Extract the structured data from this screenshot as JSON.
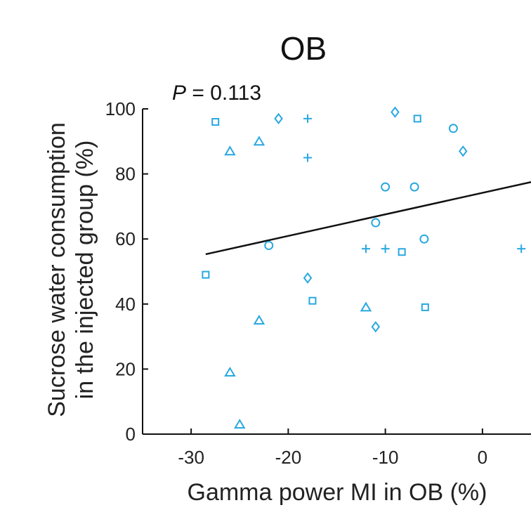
{
  "chart_data": {
    "type": "scatter",
    "title": "OB",
    "xlabel": "Gamma power MI in OB (%)",
    "ylabel_line1": "Sucrose water consumption",
    "ylabel_line2": "in the injected group (%)",
    "annotation_p": "P",
    "annotation_value": " = 0.113",
    "xlim": [
      -35,
      5
    ],
    "ylim": [
      0,
      100
    ],
    "xticks": [
      -30,
      -20,
      -10,
      0
    ],
    "xtick_labels": [
      "-30",
      "-20",
      "-10",
      "0"
    ],
    "yticks": [
      0,
      20,
      40,
      60,
      80,
      100
    ],
    "ytick_labels": [
      "0",
      "20",
      "40",
      "60",
      "80",
      "100"
    ],
    "marker_color": "#29a8e0",
    "line_color": "#111111",
    "fit_line": {
      "x": [
        -28.5,
        5
      ],
      "y": [
        55.3,
        77.5
      ]
    },
    "series": [
      {
        "name": "square",
        "marker": "square",
        "points": [
          {
            "x": -27.5,
            "y": 96
          },
          {
            "x": -28.5,
            "y": 49
          },
          {
            "x": -17.5,
            "y": 41
          },
          {
            "x": -8.3,
            "y": 56
          },
          {
            "x": -6.7,
            "y": 97
          },
          {
            "x": -5.9,
            "y": 39
          }
        ]
      },
      {
        "name": "triangle",
        "marker": "triangle",
        "points": [
          {
            "x": -26,
            "y": 87
          },
          {
            "x": -23,
            "y": 90
          },
          {
            "x": -23,
            "y": 35
          },
          {
            "x": -26,
            "y": 19
          },
          {
            "x": -25,
            "y": 3
          },
          {
            "x": -12,
            "y": 39
          }
        ]
      },
      {
        "name": "diamond",
        "marker": "diamond",
        "points": [
          {
            "x": -21,
            "y": 97
          },
          {
            "x": -9,
            "y": 99
          },
          {
            "x": -2,
            "y": 87
          },
          {
            "x": -18,
            "y": 48
          },
          {
            "x": -11,
            "y": 33
          }
        ]
      },
      {
        "name": "plus",
        "marker": "plus",
        "points": [
          {
            "x": -18,
            "y": 97
          },
          {
            "x": -18,
            "y": 85
          },
          {
            "x": -12,
            "y": 57
          },
          {
            "x": -10,
            "y": 57
          },
          {
            "x": 4,
            "y": 57
          }
        ]
      },
      {
        "name": "circle",
        "marker": "circle",
        "points": [
          {
            "x": -3,
            "y": 94
          },
          {
            "x": -10,
            "y": 76
          },
          {
            "x": -7,
            "y": 76
          },
          {
            "x": -11,
            "y": 65
          },
          {
            "x": -22,
            "y": 58
          },
          {
            "x": -6,
            "y": 60
          }
        ]
      }
    ]
  }
}
